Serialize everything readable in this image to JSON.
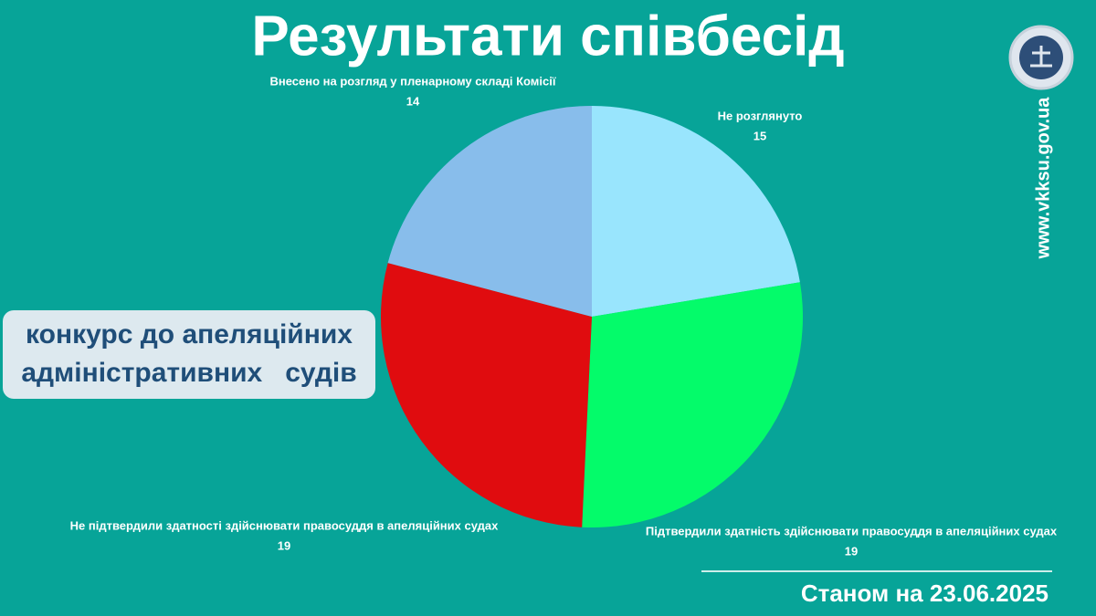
{
  "chart_data": {
    "type": "pie",
    "title": "Результати співбесід",
    "categories": [
      "Не розглянуто",
      "Підтвердили здатність здійснювати правосуддя в апеляційних судах",
      "Не підтвердили здатності здійснювати правосуддя в апеляційних судах",
      "Внесено на розгляд у пленарному складі Комісії"
    ],
    "values": [
      15,
      19,
      19,
      14
    ],
    "colors": [
      "#99e5fd",
      "#04fb6a",
      "#e00c0f",
      "#88bdeb"
    ]
  },
  "badge": [
    "конкурс до апеляційних",
    "адміністративних   судів"
  ],
  "website": "www.vkksu.gov.ua",
  "date_note": "Станом на 23.06.2025"
}
